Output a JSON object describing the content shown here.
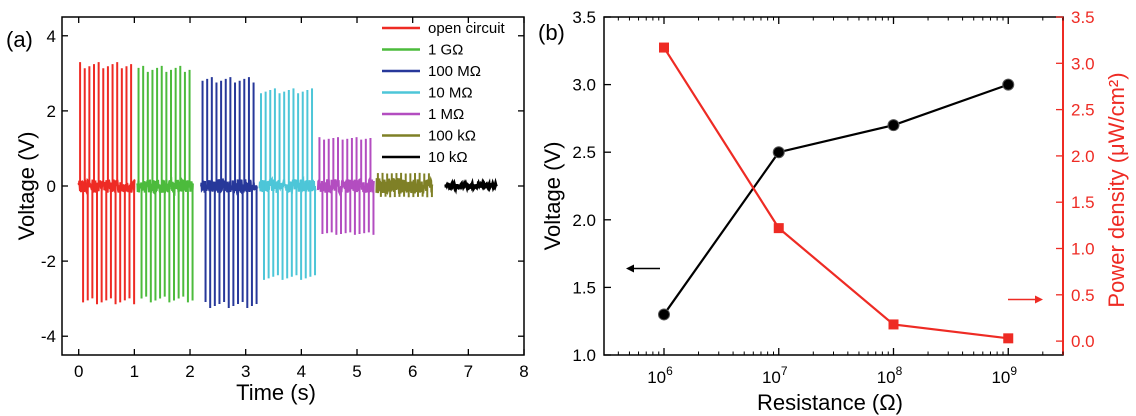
{
  "charts": [
    {
      "panel_label": "(a)",
      "xlabel": "Time (s)",
      "ylabel": "Voltage (V)",
      "xlim": [
        -0.3,
        8
      ],
      "ylim": [
        -4.5,
        4.5
      ],
      "xticks": [
        0,
        1,
        2,
        3,
        4,
        5,
        6,
        7,
        8
      ],
      "yticks": [
        -4,
        -2,
        0,
        2,
        4
      ],
      "legend_labels": [
        "open circuit",
        "1 GΩ",
        "100 MΩ",
        "10 MΩ",
        "1 MΩ",
        "100 kΩ",
        "10 kΩ"
      ]
    },
    {
      "panel_label": "(b)",
      "xlabel": "Resistance (Ω)",
      "ylabel_left": "Voltage (V)",
      "ylabel_right": "Power density (μW/cm²)",
      "yticks_left": [
        "1.0",
        "1.5",
        "2.0",
        "2.5",
        "3.0",
        "3.5"
      ],
      "yticks_right": [
        "0.0",
        "0.5",
        "1.0",
        "1.5",
        "2.0",
        "2.5",
        "3.0",
        "3.5"
      ],
      "xtick_base": "10",
      "xtick_exponents": [
        "6",
        "7",
        "8",
        "9"
      ]
    }
  ],
  "chart_data": [
    {
      "type": "line",
      "title": "",
      "xlabel": "Time (s)",
      "ylabel": "Voltage (V)",
      "xlim": [
        -0.3,
        8
      ],
      "ylim": [
        -4.5,
        4.5
      ],
      "legend_position": "top-right",
      "series": [
        {
          "name": "open circuit",
          "color": "#ee2b24",
          "t_start": 0.0,
          "t_end": 1.0,
          "pos_peak": 3.3,
          "neg_peak": -3.15,
          "pulses": 12
        },
        {
          "name": "1 GΩ",
          "color": "#4cbb3c",
          "t_start": 1.05,
          "t_end": 2.05,
          "pos_peak": 3.2,
          "neg_peak": -3.1,
          "pulses": 12
        },
        {
          "name": "100 MΩ",
          "color": "#27389a",
          "t_start": 2.2,
          "t_end": 3.2,
          "pos_peak": 2.9,
          "neg_peak": -3.25,
          "pulses": 12
        },
        {
          "name": "10 MΩ",
          "color": "#4dc6d8",
          "t_start": 3.25,
          "t_end": 4.25,
          "pos_peak": 2.6,
          "neg_peak": -2.5,
          "pulses": 12
        },
        {
          "name": "1 MΩ",
          "color": "#b34dc0",
          "t_start": 4.3,
          "t_end": 5.3,
          "pos_peak": 1.3,
          "neg_peak": -1.3,
          "pulses": 12
        },
        {
          "name": "100 kΩ",
          "color": "#7f8026",
          "t_start": 5.35,
          "t_end": 6.35,
          "pos_peak": 0.35,
          "neg_peak": -0.3,
          "pulses": 12
        },
        {
          "name": "10 kΩ",
          "color": "#000000",
          "t_start": 6.6,
          "t_end": 7.5,
          "pos_peak": 0.08,
          "neg_peak": -0.08,
          "pulses": 12
        }
      ]
    },
    {
      "type": "line",
      "title": "",
      "xlabel": "Resistance (Ω)",
      "ylabel": "Voltage (V)",
      "y2label": "Power density (μW/cm²)",
      "xscale": "log",
      "xlim": [
        300000,
        3000000000
      ],
      "ylim": [
        1.0,
        3.5
      ],
      "y2lim": [
        -0.15,
        3.5
      ],
      "x": [
        1000000,
        10000000,
        100000000,
        1000000000
      ],
      "series": [
        {
          "name": "Voltage",
          "axis": "left",
          "color": "#000000",
          "marker": "circle",
          "values": [
            1.3,
            2.5,
            2.7,
            3.0
          ]
        },
        {
          "name": "Power density",
          "axis": "right",
          "color": "#ee2b24",
          "marker": "square",
          "values": [
            3.17,
            1.22,
            0.18,
            0.03
          ]
        }
      ],
      "annotations": [
        {
          "type": "arrow",
          "direction": "left",
          "color": "#000000",
          "near_series": "Voltage"
        },
        {
          "type": "arrow",
          "direction": "right",
          "color": "#ee2b24",
          "near_series": "Power density"
        }
      ]
    }
  ]
}
